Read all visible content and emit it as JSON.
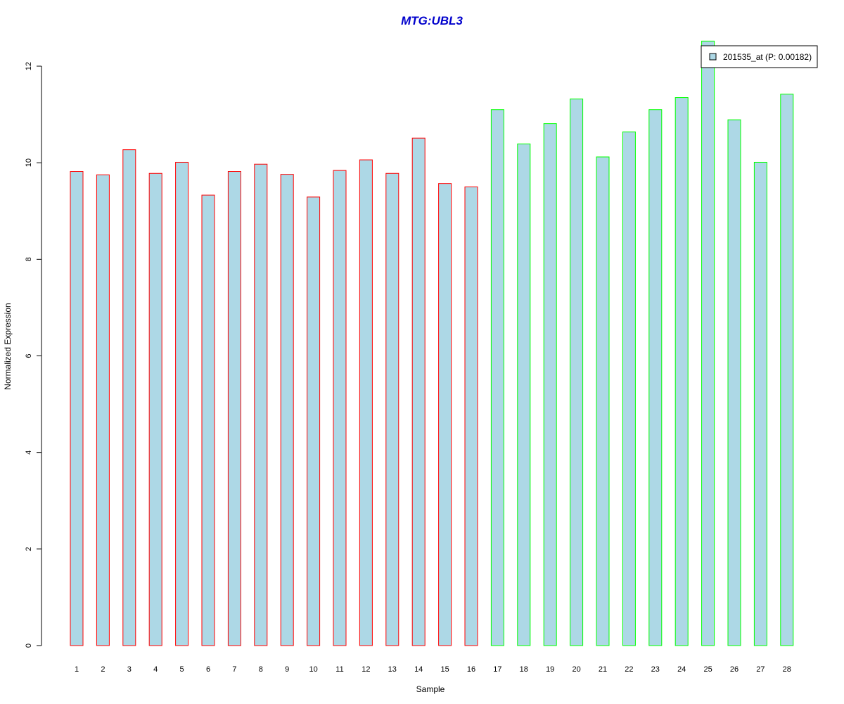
{
  "chart_data": {
    "type": "bar",
    "title": "MTG:UBL3",
    "xlabel": "Sample",
    "ylabel": "Normalized Expression",
    "ylim": [
      0,
      12
    ],
    "yticks": [
      0,
      2,
      4,
      6,
      8,
      10,
      12
    ],
    "categories": [
      "1",
      "2",
      "3",
      "4",
      "5",
      "6",
      "7",
      "8",
      "9",
      "10",
      "11",
      "12",
      "13",
      "14",
      "15",
      "16",
      "17",
      "18",
      "19",
      "20",
      "21",
      "22",
      "23",
      "24",
      "25",
      "26",
      "27",
      "28"
    ],
    "series": [
      {
        "name": "201535_at (P: 0.00182)",
        "values": [
          9.82,
          9.75,
          10.27,
          9.78,
          10.01,
          9.33,
          9.82,
          9.97,
          9.76,
          9.29,
          9.84,
          10.06,
          9.78,
          10.51,
          9.57,
          9.5,
          11.1,
          10.39,
          10.81,
          11.32,
          10.12,
          10.64,
          11.1,
          11.35,
          12.52,
          10.89,
          10.01,
          11.42
        ]
      }
    ],
    "bar_fill": "#add8e6",
    "group_outline_colors": [
      "#ff0000",
      "#00ff00"
    ],
    "groups": [
      {
        "outline": "#ff0000",
        "count": 16
      },
      {
        "outline": "#00ff00",
        "count": 12
      }
    ],
    "legend_position": "top-right",
    "grid": false
  }
}
